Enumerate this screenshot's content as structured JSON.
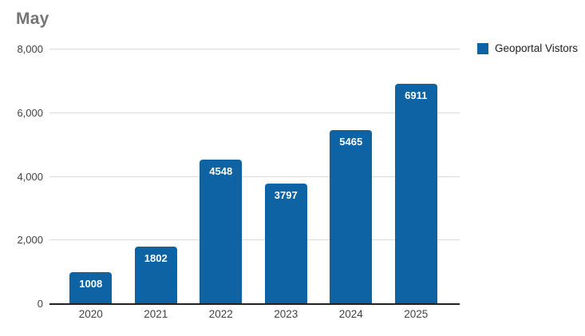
{
  "title": "May",
  "legend": {
    "label": "Geoportal Vistors"
  },
  "colors": {
    "bar": "#0d63a3",
    "bar_label": "#ffffff",
    "title": "#757575",
    "gridline": "#dadada",
    "axis_line": "#212121",
    "axis_label": "#424242",
    "legend_text": "#212121",
    "background": "#ffffff"
  },
  "chart_data": {
    "type": "bar",
    "title": "May",
    "categories": [
      "2020",
      "2021",
      "2022",
      "2023",
      "2024",
      "2025"
    ],
    "series": [
      {
        "name": "Geoportal Vistors",
        "values": [
          1008,
          1802,
          4548,
          3797,
          5465,
          6911
        ]
      }
    ],
    "bar_labels": [
      "1008",
      "1802",
      "4548",
      "3797",
      "5465",
      "6911"
    ],
    "xlabel": "",
    "ylabel": "",
    "ylim": [
      0,
      8000
    ],
    "y_ticks": [
      {
        "value": 0,
        "label": "0"
      },
      {
        "value": 2000,
        "label": "2,000"
      },
      {
        "value": 4000,
        "label": "4,000"
      },
      {
        "value": 6000,
        "label": "6,000"
      },
      {
        "value": 8000,
        "label": "8,000"
      }
    ],
    "grid": true,
    "legend_position": "top-right",
    "bar_value_labels": true
  }
}
